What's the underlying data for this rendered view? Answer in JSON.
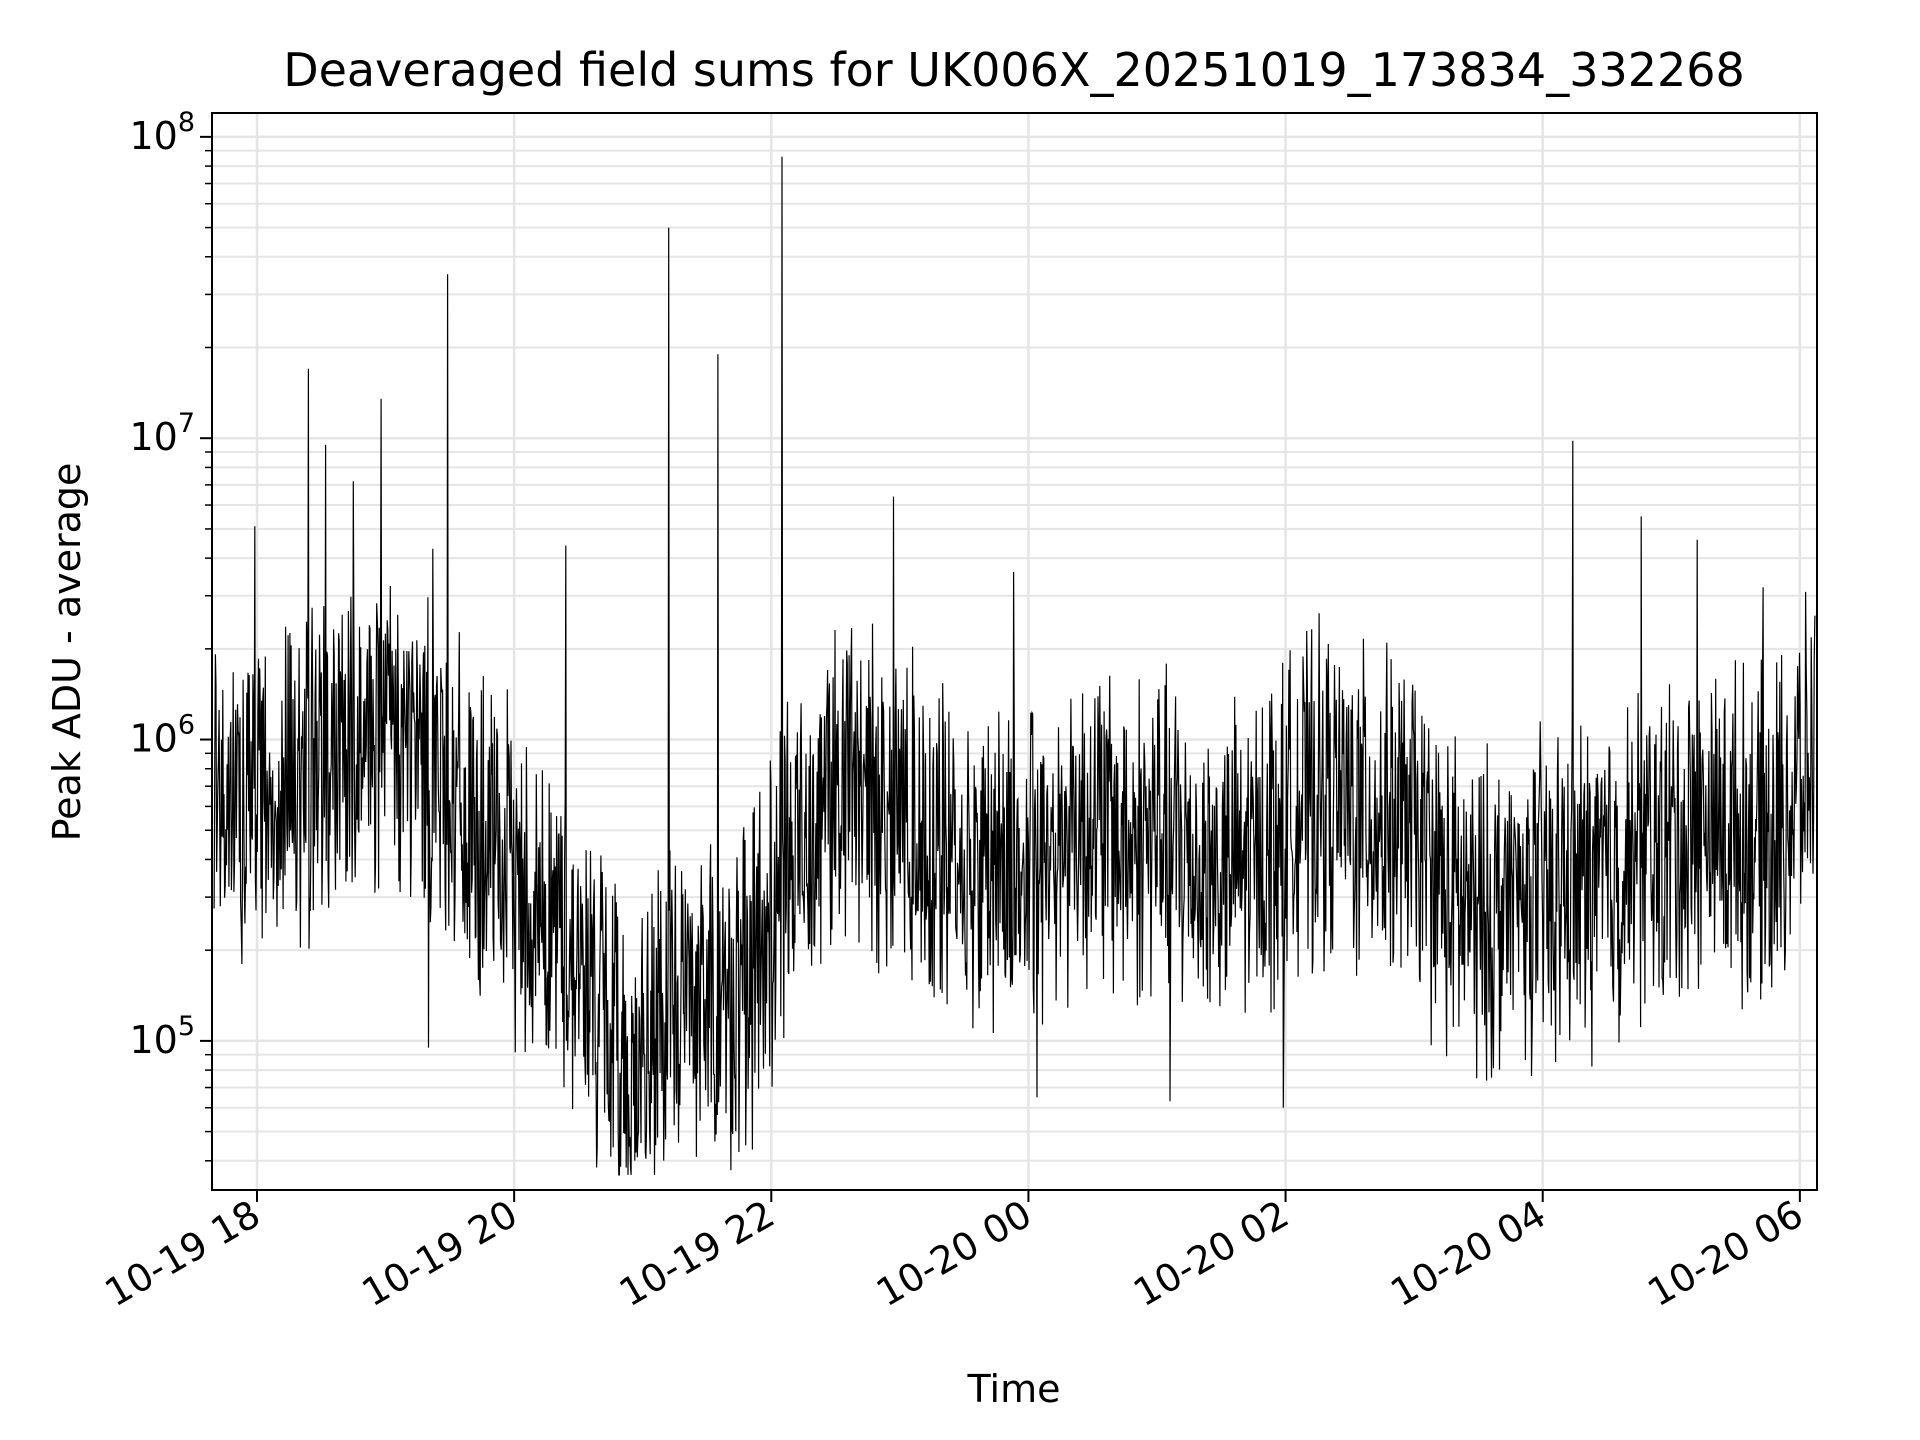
{
  "chart_data": {
    "type": "line",
    "title": "Deaveraged field sums for UK006X_20251019_173834_332268",
    "xlabel": "Time",
    "ylabel": "Peak ADU - average",
    "yscale": "log",
    "ylim": [
      32000,
      120000000
    ],
    "xlim": [
      "2025-10-19 17:39",
      "2025-10-20 06:08"
    ],
    "grid": true,
    "line_color": "#000000",
    "grid_color": "#e5e5e5",
    "x_ticks": [
      {
        "value": "2025-10-19 18:00",
        "label": "10-19 18"
      },
      {
        "value": "2025-10-19 20:00",
        "label": "10-19 20"
      },
      {
        "value": "2025-10-19 22:00",
        "label": "10-19 22"
      },
      {
        "value": "2025-10-20 00:00",
        "label": "10-20 00"
      },
      {
        "value": "2025-10-20 02:00",
        "label": "10-20 02"
      },
      {
        "value": "2025-10-20 04:00",
        "label": "10-20 04"
      },
      {
        "value": "2025-10-20 06:00",
        "label": "10-20 06"
      }
    ],
    "y_ticks": [
      {
        "value": 100000,
        "base": "10",
        "exp": "5"
      },
      {
        "value": 1000000,
        "base": "10",
        "exp": "6"
      },
      {
        "value": 10000000,
        "base": "10",
        "exp": "7"
      },
      {
        "value": 100000000,
        "base": "10",
        "exp": "8"
      }
    ],
    "series": [
      {
        "x": [
          "2025-10-19 17:40",
          "2025-10-19 17:48",
          "2025-10-19 17:55",
          "2025-10-19 18:00",
          "2025-10-19 18:08",
          "2025-10-19 18:15",
          "2025-10-19 18:24",
          "2025-10-19 18:32",
          "2025-10-19 18:40",
          "2025-10-19 18:48",
          "2025-10-19 18:55",
          "2025-10-19 19:00",
          "2025-10-19 19:10",
          "2025-10-19 19:20",
          "2025-10-19 19:30",
          "2025-10-19 19:40",
          "2025-10-19 19:50",
          "2025-10-19 20:00",
          "2025-10-19 20:10",
          "2025-10-19 20:20",
          "2025-10-19 20:30",
          "2025-10-19 20:40",
          "2025-10-19 20:50",
          "2025-10-19 21:00",
          "2025-10-19 21:10",
          "2025-10-19 21:20",
          "2025-10-19 21:30",
          "2025-10-19 21:40",
          "2025-10-19 21:50",
          "2025-10-19 22:00",
          "2025-10-19 22:10",
          "2025-10-19 22:20",
          "2025-10-19 22:30",
          "2025-10-19 22:40",
          "2025-10-19 22:50",
          "2025-10-19 23:00",
          "2025-10-19 23:15",
          "2025-10-19 23:30",
          "2025-10-19 23:45",
          "2025-10-20 00:00",
          "2025-10-20 00:15",
          "2025-10-20 00:30",
          "2025-10-20 00:45",
          "2025-10-20 01:00",
          "2025-10-20 01:15",
          "2025-10-20 01:30",
          "2025-10-20 01:45",
          "2025-10-20 02:00",
          "2025-10-20 02:15",
          "2025-10-20 02:30",
          "2025-10-20 02:45",
          "2025-10-20 03:00",
          "2025-10-20 03:15",
          "2025-10-20 03:30",
          "2025-10-20 03:45",
          "2025-10-20 04:00",
          "2025-10-20 04:15",
          "2025-10-20 04:30",
          "2025-10-20 04:45",
          "2025-10-20 05:00",
          "2025-10-20 05:15",
          "2025-10-20 05:30",
          "2025-10-20 05:45",
          "2025-10-20 06:00",
          "2025-10-20 06:07"
        ],
        "y": [
          600000,
          700000,
          650000,
          750000,
          700000,
          720000,
          800000,
          850000,
          900000,
          950000,
          1000000,
          1050000,
          950000,
          900000,
          700000,
          450000,
          400000,
          350000,
          280000,
          240000,
          180000,
          130000,
          90000,
          80000,
          110000,
          150000,
          140000,
          130000,
          160000,
          250000,
          400000,
          600000,
          750000,
          700000,
          650000,
          600000,
          450000,
          380000,
          400000,
          350000,
          500000,
          550000,
          450000,
          500000,
          400000,
          350000,
          400000,
          550000,
          650000,
          600000,
          550000,
          500000,
          300000,
          250000,
          280000,
          300000,
          330000,
          350000,
          400000,
          450000,
          500000,
          500000,
          450000,
          700000,
          900000
        ],
        "spikes": [
          {
            "x": "2025-10-19 17:59",
            "y": 5100000
          },
          {
            "x": "2025-10-19 18:24",
            "y": 17000000
          },
          {
            "x": "2025-10-19 18:32",
            "y": 9500000
          },
          {
            "x": "2025-10-19 18:45",
            "y": 7200000
          },
          {
            "x": "2025-10-19 18:58",
            "y": 13500000
          },
          {
            "x": "2025-10-19 19:29",
            "y": 35000000
          },
          {
            "x": "2025-10-19 19:22",
            "y": 4300000
          },
          {
            "x": "2025-10-19 20:24",
            "y": 4400000
          },
          {
            "x": "2025-10-19 21:12",
            "y": 50000000
          },
          {
            "x": "2025-10-19 21:35",
            "y": 19000000
          },
          {
            "x": "2025-10-19 22:05",
            "y": 86000000
          },
          {
            "x": "2025-10-19 22:57",
            "y": 6400000
          },
          {
            "x": "2025-10-19 23:53",
            "y": 3600000
          },
          {
            "x": "2025-10-20 04:14",
            "y": 9800000
          },
          {
            "x": "2025-10-20 04:46",
            "y": 5500000
          },
          {
            "x": "2025-10-20 05:12",
            "y": 4600000
          },
          {
            "x": "2025-10-20 05:43",
            "y": 3200000
          },
          {
            "x": "2025-10-20 00:04",
            "y": 65000
          },
          {
            "x": "2025-10-20 01:06",
            "y": 63000
          },
          {
            "x": "2025-10-20 01:59",
            "y": 60000
          },
          {
            "x": "2025-10-19 21:48",
            "y": 45000
          },
          {
            "x": "2025-10-19 20:54",
            "y": 48000
          },
          {
            "x": "2025-10-19 19:20",
            "y": 95000
          },
          {
            "x": "2025-10-19 17:53",
            "y": 180000
          }
        ]
      }
    ]
  }
}
